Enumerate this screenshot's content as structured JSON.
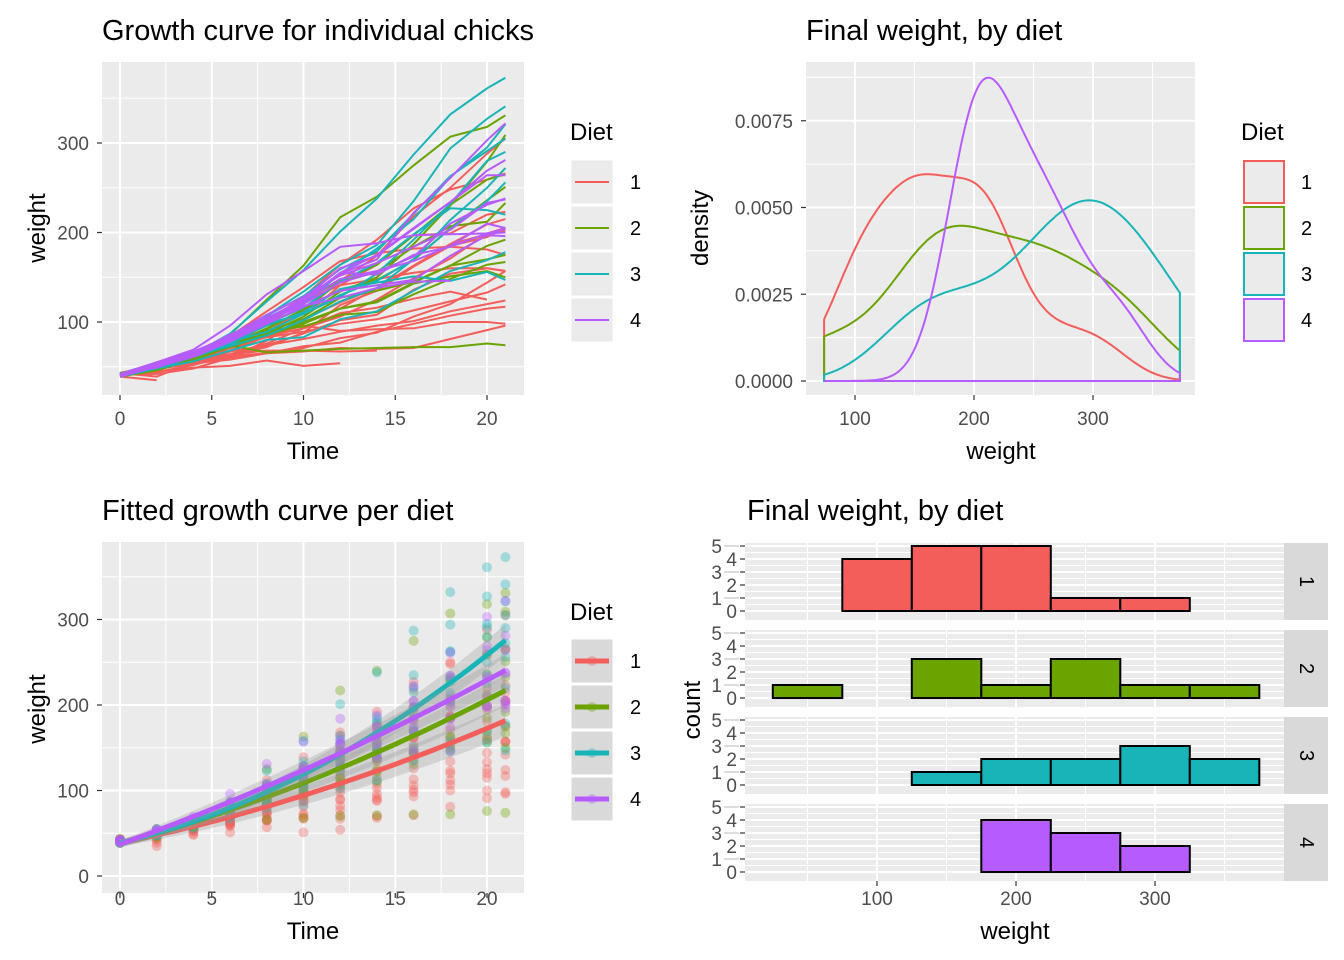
{
  "colors": {
    "1": "#F35E5A",
    "2": "#6BA300",
    "3": "#19B4B8",
    "4": "#B65CFF",
    "panel": "#EBEBEB",
    "grid": "#FFFFFF",
    "strip": "#D9D9D9"
  },
  "chart_data": [
    {
      "type": "line",
      "title": "Growth curve for individual chicks",
      "xlabel": "Time",
      "ylabel": "weight",
      "xticks": [
        "0",
        "5",
        "10",
        "15",
        "20"
      ],
      "yticks": [
        "100",
        "200",
        "300"
      ],
      "xlim": [
        -1.05,
        22.05
      ],
      "ylim": [
        18,
        390
      ],
      "grid": true,
      "legend": {
        "title": "Diet",
        "entries": [
          "1",
          "2",
          "3",
          "4"
        ],
        "placement": "right"
      },
      "times": [
        0,
        2,
        4,
        6,
        8,
        10,
        12,
        14,
        16,
        18,
        20,
        21
      ],
      "series": [
        {
          "diet": "1",
          "weight": [
            42,
            51,
            59,
            64,
            76,
            93,
            106,
            125,
            149,
            171,
            199,
            205
          ]
        },
        {
          "diet": "1",
          "weight": [
            40,
            49,
            58,
            72,
            84,
            103,
            122,
            138,
            162,
            187,
            209,
            215
          ]
        },
        {
          "diet": "1",
          "weight": [
            43,
            39,
            55,
            67,
            84,
            99,
            115,
            138,
            163,
            187,
            198,
            202
          ]
        },
        {
          "diet": "1",
          "weight": [
            42,
            49,
            56,
            67,
            74,
            87,
            102,
            108,
            136,
            154,
            160,
            157
          ]
        },
        {
          "diet": "1",
          "weight": [
            41,
            42,
            48,
            60,
            79,
            106,
            141,
            164,
            197,
            199,
            220,
            223
          ]
        },
        {
          "diet": "1",
          "weight": [
            41,
            49,
            59,
            74,
            97,
            124,
            141,
            148,
            155,
            160,
            160,
            157
          ]
        },
        {
          "diet": "1",
          "weight": [
            41,
            49,
            57,
            71,
            89,
            112,
            146,
            174,
            218,
            250,
            288,
            305
          ]
        },
        {
          "diet": "1",
          "weight": [
            42,
            50,
            61,
            71,
            84,
            93,
            110,
            116,
            126,
            134,
            125
          ]
        },
        {
          "diet": "1",
          "weight": [
            42,
            51,
            59,
            68,
            85,
            96,
            90,
            92,
            93,
            100,
            100,
            98
          ]
        },
        {
          "diet": "1",
          "weight": [
            41,
            44,
            52,
            63,
            74,
            81,
            89,
            96,
            101,
            112,
            120,
            124
          ]
        },
        {
          "diet": "1",
          "weight": [
            43,
            51,
            63,
            84,
            112,
            139,
            168,
            177,
            182,
            184,
            181,
            175
          ]
        },
        {
          "diet": "1",
          "weight": [
            41,
            49,
            56,
            62,
            72,
            88,
            119,
            135,
            162,
            185,
            195,
            205
          ]
        },
        {
          "diet": "1",
          "weight": [
            41,
            48,
            53,
            60,
            65,
            67,
            71,
            70,
            71,
            81,
            91,
            96
          ]
        },
        {
          "diet": "1",
          "weight": [
            41,
            49,
            62,
            79,
            101,
            128,
            164,
            192,
            227,
            248,
            259,
            266
          ]
        },
        {
          "diet": "1",
          "weight": [
            41,
            49,
            56,
            64,
            68,
            68,
            67,
            68
          ]
        },
        {
          "diet": "1",
          "weight": [
            41,
            45,
            49,
            51,
            57,
            51,
            54
          ]
        },
        {
          "diet": "1",
          "weight": [
            42,
            51,
            61,
            72,
            83,
            89,
            98,
            103,
            113,
            123,
            133,
            142
          ]
        },
        {
          "diet": "1",
          "weight": [
            39,
            35
          ]
        },
        {
          "diet": "1",
          "weight": [
            43,
            48,
            55,
            62,
            65,
            71,
            82,
            88,
            106,
            120,
            144,
            157
          ]
        },
        {
          "diet": "1",
          "weight": [
            41,
            47,
            54,
            58,
            65,
            73,
            77,
            89,
            98,
            107,
            115,
            117
          ]
        },
        {
          "diet": "2",
          "weight": [
            40,
            50,
            62,
            86,
            125,
            163,
            217,
            240,
            275,
            307,
            318,
            331
          ]
        },
        {
          "diet": "2",
          "weight": [
            41,
            55,
            64,
            77,
            90,
            95,
            108,
            111,
            131,
            148,
            164,
            167
          ]
        },
        {
          "diet": "2",
          "weight": [
            43,
            52,
            61,
            73,
            90,
            103,
            127,
            135,
            145,
            163,
            170,
            175
          ]
        },
        {
          "diet": "2",
          "weight": [
            42,
            52,
            58,
            74,
            66,
            68,
            70,
            71,
            72,
            72,
            76,
            74
          ]
        },
        {
          "diet": "2",
          "weight": [
            40,
            49,
            62,
            78,
            102,
            124,
            146,
            164,
            197,
            231,
            259,
            265
          ]
        },
        {
          "diet": "2",
          "weight": [
            42,
            48,
            57,
            74,
            93,
            114,
            136,
            147,
            169,
            205,
            236,
            251
          ]
        },
        {
          "diet": "2",
          "weight": [
            39,
            46,
            58,
            73,
            87,
            100,
            115,
            123,
            144,
            163,
            185,
            192
          ]
        },
        {
          "diet": "2",
          "weight": [
            39,
            46,
            58,
            73,
            92,
            114,
            145,
            156,
            184,
            207,
            212,
            233
          ]
        },
        {
          "diet": "2",
          "weight": [
            39,
            48,
            59,
            74,
            87,
            106,
            134,
            150,
            187,
            230,
            279,
            309
          ]
        },
        {
          "diet": "2",
          "weight": [
            42,
            48,
            59,
            72,
            85,
            98,
            115,
            122,
            143,
            151,
            157,
            150
          ]
        },
        {
          "diet": "3",
          "weight": [
            42,
            53,
            62,
            73,
            85,
            102,
            123,
            138,
            170,
            204,
            235,
            256
          ]
        },
        {
          "diet": "3",
          "weight": [
            41,
            49,
            65,
            82,
            107,
            129,
            159,
            179,
            221,
            263,
            291,
            305
          ]
        },
        {
          "diet": "3",
          "weight": [
            39,
            50,
            63,
            77,
            96,
            111,
            137,
            144,
            151,
            146,
            156,
            147
          ]
        },
        {
          "diet": "3",
          "weight": [
            41,
            49,
            63,
            85,
            107,
            134,
            164,
            186,
            235,
            294,
            327,
            341
          ]
        },
        {
          "diet": "3",
          "weight": [
            41,
            53,
            64,
            87,
            123,
            158,
            201,
            238,
            287,
            332,
            361,
            373
          ]
        },
        {
          "diet": "3",
          "weight": [
            39,
            48,
            61,
            76,
            98,
            116,
            145,
            166,
            198,
            227,
            225,
            220
          ]
        },
        {
          "diet": "3",
          "weight": [
            41,
            48,
            56,
            68,
            80,
            83,
            103,
            112,
            135,
            157,
            169,
            178
          ]
        },
        {
          "diet": "3",
          "weight": [
            41,
            49,
            61,
            74,
            98,
            109,
            128,
            154,
            192,
            232,
            280,
            290
          ]
        },
        {
          "diet": "3",
          "weight": [
            42,
            50,
            61,
            78,
            89,
            109,
            130,
            146,
            170,
            214,
            250,
            272
          ]
        },
        {
          "diet": "3",
          "weight": [
            41,
            55,
            66,
            79,
            101,
            120,
            154,
            182,
            215,
            262,
            295,
            321
          ]
        },
        {
          "diet": "4",
          "weight": [
            42,
            51,
            66,
            85,
            103,
            124,
            155,
            153,
            175,
            184,
            199,
            204
          ]
        },
        {
          "diet": "4",
          "weight": [
            42,
            49,
            63,
            84,
            103,
            126,
            160,
            174,
            204,
            234,
            269,
            281
          ]
        },
        {
          "diet": "4",
          "weight": [
            42,
            55,
            69,
            96,
            131,
            157,
            184,
            188,
            197,
            198,
            199,
            200
          ]
        },
        {
          "diet": "4",
          "weight": [
            42,
            51,
            65,
            86,
            103,
            118,
            127,
            138,
            145,
            146
          ]
        },
        {
          "diet": "4",
          "weight": [
            41,
            50,
            61,
            78,
            98,
            117,
            135,
            141,
            147,
            174,
            197,
            196
          ]
        },
        {
          "diet": "4",
          "weight": [
            40,
            52,
            62,
            82,
            101,
            120,
            144,
            156,
            173,
            210,
            231,
            238
          ]
        },
        {
          "diet": "4",
          "weight": [
            41,
            53,
            66,
            79,
            100,
            123,
            148,
            157,
            168,
            185,
            210,
            205
          ]
        },
        {
          "diet": "4",
          "weight": [
            39,
            50,
            62,
            80,
            104,
            125,
            154,
            170,
            222,
            261,
            303,
            322
          ]
        },
        {
          "diet": "4",
          "weight": [
            40,
            53,
            64,
            85,
            108,
            128,
            152,
            166,
            184,
            203,
            233,
            237
          ]
        },
        {
          "diet": "4",
          "weight": [
            41,
            54,
            67,
            84,
            105,
            122,
            155,
            175,
            205,
            234,
            264,
            264
          ]
        }
      ]
    },
    {
      "type": "area",
      "title": "Final weight, by diet",
      "xlabel": "weight",
      "ylabel": "density",
      "xticks": [
        "100",
        "200",
        "300"
      ],
      "yticks": [
        "0.0000",
        "0.0025",
        "0.0050",
        "0.0075"
      ],
      "xlim": [
        59,
        388
      ],
      "ylim": [
        -0.0004,
        0.0092
      ],
      "grid": true,
      "legend": {
        "title": "Diet",
        "entries": [
          "1",
          "2",
          "3",
          "4"
        ],
        "placement": "right"
      },
      "series": [
        {
          "name": "1",
          "values": [
            205,
            215,
            202,
            157,
            223,
            157,
            305,
            98,
            124,
            175,
            205,
            96,
            266,
            142,
            157,
            117
          ]
        },
        {
          "name": "2",
          "values": [
            331,
            167,
            175,
            74,
            265,
            251,
            192,
            233,
            309,
            150
          ]
        },
        {
          "name": "3",
          "values": [
            256,
            305,
            147,
            341,
            373,
            220,
            178,
            290,
            272,
            321
          ]
        },
        {
          "name": "4",
          "values": [
            204,
            281,
            200,
            196,
            238,
            205,
            322,
            237,
            264
          ]
        }
      ]
    },
    {
      "type": "scatter",
      "title": "Fitted growth curve per diet",
      "xlabel": "Time",
      "ylabel": "weight",
      "xticks": [
        "0",
        "5",
        "10",
        "15",
        "20"
      ],
      "yticks": [
        "0",
        "100",
        "200",
        "300"
      ],
      "xlim": [
        -1.05,
        22.05
      ],
      "ylim": [
        -20,
        390
      ],
      "grid": true,
      "smooth": true,
      "legend": {
        "title": "Diet",
        "entries": [
          "1",
          "2",
          "3",
          "4"
        ],
        "placement": "right"
      }
    },
    {
      "type": "bar",
      "title": "Final weight, by diet",
      "xlabel": "weight",
      "ylabel": "count",
      "xticks": [
        "100",
        "200",
        "300"
      ],
      "yticks": [
        "0",
        "1",
        "2",
        "3",
        "4",
        "5"
      ],
      "bin_centers": [
        50,
        100,
        150,
        200,
        250,
        300,
        350
      ],
      "binwidth": 50,
      "xlim": [
        7,
        394
      ],
      "ylim": [
        -0.25,
        5.25
      ],
      "grid": true,
      "facets": [
        {
          "label": "1",
          "values": [
            0,
            4,
            5,
            5,
            1,
            1,
            0
          ]
        },
        {
          "label": "2",
          "values": [
            1,
            0,
            3,
            1,
            3,
            1,
            1
          ]
        },
        {
          "label": "3",
          "values": [
            0,
            0,
            1,
            2,
            2,
            3,
            2
          ]
        },
        {
          "label": "4",
          "values": [
            0,
            0,
            0,
            4,
            3,
            2,
            0
          ]
        }
      ]
    }
  ]
}
